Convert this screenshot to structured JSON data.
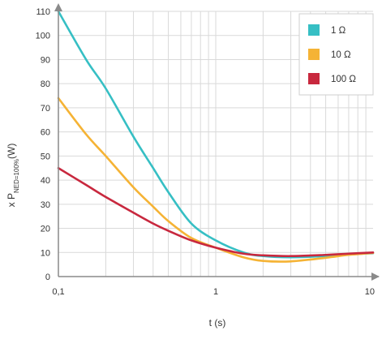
{
  "chart_data": {
    "type": "line",
    "title": "",
    "xlabel": "t (s)",
    "ylabel_prefix": "x P",
    "ylabel_subscript": "NED=100%",
    "ylabel_suffix": "(W)",
    "x_scale": "log",
    "xlim": [
      0.1,
      10
    ],
    "ylim": [
      0,
      110
    ],
    "x_ticks": [
      0.1,
      1,
      10
    ],
    "x_tick_labels": [
      "0,1",
      "1",
      "10"
    ],
    "y_ticks": [
      0,
      10,
      20,
      30,
      40,
      50,
      60,
      70,
      80,
      90,
      100,
      110
    ],
    "y_tick_labels": [
      "0",
      "10",
      "20",
      "30",
      "40",
      "50",
      "60",
      "70",
      "80",
      "90",
      "100",
      "110"
    ],
    "grid": true,
    "legend_position": "top-right",
    "series": [
      {
        "name": "1 Ω",
        "color": "#36bfc4",
        "x": [
          0.1,
          0.15,
          0.2,
          0.3,
          0.4,
          0.5,
          0.7,
          1,
          1.5,
          2,
          3,
          5,
          7,
          10
        ],
        "y": [
          110,
          90,
          78,
          58,
          45,
          35,
          22,
          15,
          10,
          8.5,
          8,
          8.5,
          9.2,
          9.7
        ]
      },
      {
        "name": "10 Ω",
        "color": "#f5b335",
        "x": [
          0.1,
          0.15,
          0.2,
          0.3,
          0.4,
          0.5,
          0.7,
          1,
          1.5,
          2,
          3,
          5,
          7,
          10
        ],
        "y": [
          74,
          59,
          50,
          37,
          29,
          23,
          16,
          12,
          8,
          6.5,
          6.3,
          7.8,
          9,
          9.8
        ]
      },
      {
        "name": "100 Ω",
        "color": "#c8283e",
        "x": [
          0.1,
          0.15,
          0.2,
          0.3,
          0.4,
          0.5,
          0.7,
          1,
          1.5,
          2,
          3,
          5,
          7,
          10
        ],
        "y": [
          45,
          38,
          33,
          26.5,
          22,
          19,
          15,
          12,
          9.5,
          8.8,
          8.5,
          9,
          9.5,
          10
        ]
      }
    ]
  }
}
